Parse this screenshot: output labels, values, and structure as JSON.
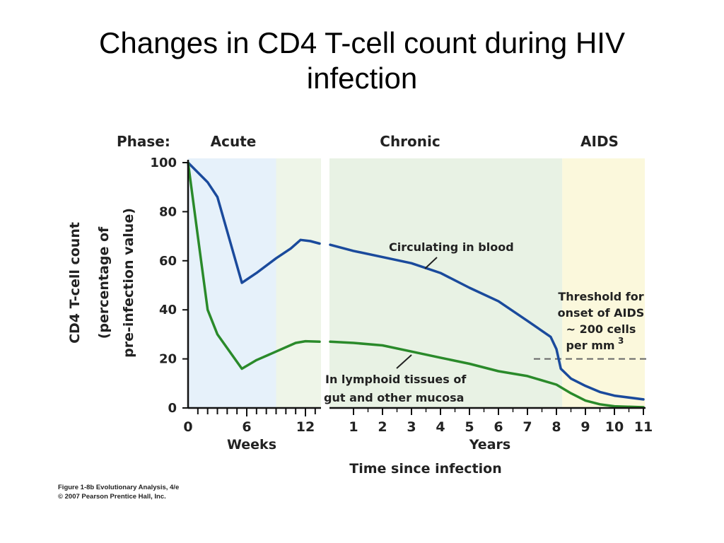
{
  "slide": {
    "title": "Changes in CD4 T-cell count during HIV infection"
  },
  "figure_caption": {
    "line1": "Figure 1-8b  Evolutionary Analysis, 4/e",
    "line2": "© 2007 Pearson Prentice Hall, Inc."
  },
  "colors": {
    "blood": "#1a4a9c",
    "lymphoid": "#2a8a2a",
    "acute_bg": "#e6f1fa",
    "late_acute_bg": "#eef5e8",
    "chronic_bg": "#e8f2e4",
    "aids_bg": "#fbf8dc",
    "threshold": "#666666"
  },
  "chart_data": {
    "type": "line",
    "ylabel_lines": [
      "CD4 T-cell count",
      "(percentage of",
      "pre-infection value)"
    ],
    "ylim": [
      0,
      100
    ],
    "yticks": [
      0,
      20,
      40,
      60,
      80,
      100
    ],
    "phase_label": "Phase:",
    "phases": [
      "Acute",
      "Chronic",
      "AIDS"
    ],
    "weeks_axis": {
      "label": "Weeks",
      "range": [
        0,
        13
      ],
      "major_ticks": [
        0,
        6,
        12
      ]
    },
    "years_axis": {
      "label": "Years",
      "range": [
        0,
        11
      ],
      "ticks": [
        1,
        2,
        3,
        4,
        5,
        6,
        7,
        8,
        9,
        10,
        11
      ]
    },
    "xlabel": "Time since infection",
    "series": [
      {
        "name": "Circulating in blood",
        "weeks": [
          [
            0,
            100
          ],
          [
            2,
            92
          ],
          [
            3,
            86
          ],
          [
            5.5,
            51
          ],
          [
            7,
            55
          ],
          [
            9,
            61
          ],
          [
            10.5,
            65
          ],
          [
            11.5,
            68.5
          ],
          [
            12.5,
            68
          ],
          [
            13,
            67
          ]
        ],
        "years": [
          [
            0,
            66.5
          ],
          [
            1,
            64
          ],
          [
            2,
            61.5
          ],
          [
            3,
            59
          ],
          [
            4,
            55
          ],
          [
            5,
            49
          ],
          [
            6,
            43.5
          ],
          [
            7,
            35.5
          ],
          [
            7.8,
            29
          ],
          [
            8.0,
            24
          ],
          [
            8.15,
            16
          ],
          [
            8.5,
            12
          ],
          [
            9,
            9
          ],
          [
            9.5,
            6.5
          ],
          [
            10,
            5
          ],
          [
            11,
            3.5
          ]
        ]
      },
      {
        "name": "In lymphoid tissues of gut and other mucosa",
        "weeks": [
          [
            0,
            100
          ],
          [
            1,
            70
          ],
          [
            2,
            40
          ],
          [
            3,
            30
          ],
          [
            5.5,
            16
          ],
          [
            7,
            19.5
          ],
          [
            9,
            23
          ],
          [
            11,
            26.5
          ],
          [
            12,
            27.2
          ],
          [
            13,
            27
          ]
        ],
        "years": [
          [
            0,
            27
          ],
          [
            1,
            26.5
          ],
          [
            2,
            25.5
          ],
          [
            3,
            23
          ],
          [
            4,
            20.5
          ],
          [
            5,
            18
          ],
          [
            6,
            15
          ],
          [
            7,
            13
          ],
          [
            8,
            9.5
          ],
          [
            8.5,
            6
          ],
          [
            9,
            3
          ],
          [
            9.5,
            1.5
          ],
          [
            10,
            0.7
          ],
          [
            11,
            0.3
          ]
        ]
      }
    ],
    "annotation": {
      "lines": [
        "Threshold for",
        "onset of AIDS",
        "~ 200 cells",
        "per mm"
      ],
      "superscript": "3",
      "threshold_value": 20
    }
  }
}
